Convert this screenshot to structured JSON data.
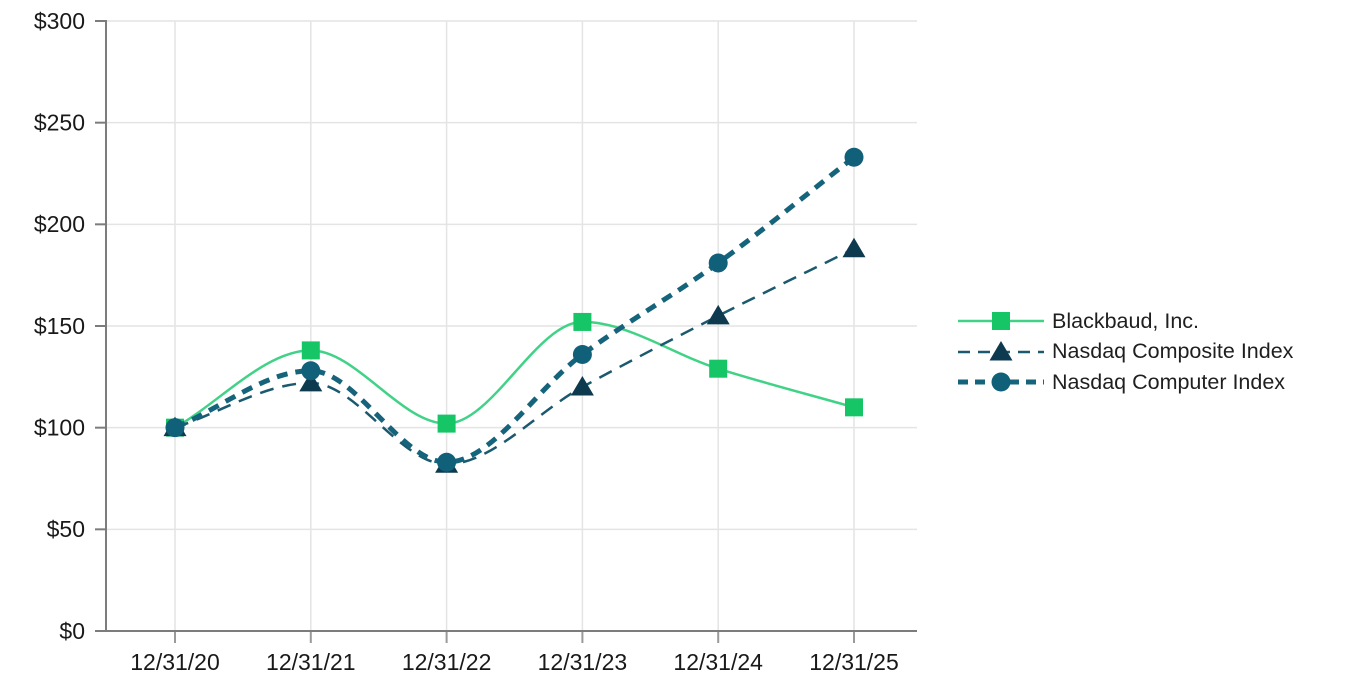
{
  "chart_data": {
    "type": "line",
    "title": "",
    "xlabel": "",
    "ylabel": "",
    "categories": [
      "12/31/20",
      "12/31/21",
      "12/31/22",
      "12/31/23",
      "12/31/24",
      "12/31/25"
    ],
    "series": [
      {
        "id": "blackbaud",
        "name": "Blackbaud, Inc.",
        "values": [
          100,
          138,
          102,
          152,
          129,
          110
        ],
        "line_color": "#41d287",
        "marker_color": "#16c566",
        "marker": "square",
        "dash": "solid",
        "line_width": 2.5
      },
      {
        "id": "nasdaq-composite",
        "name": "Nasdaq Composite Index",
        "values": [
          100,
          122,
          82,
          120,
          155,
          188
        ],
        "line_color": "#1b5a6e",
        "marker_color": "#0e3a50",
        "marker": "triangle",
        "dash": "dashed",
        "line_width": 2.5
      },
      {
        "id": "nasdaq-computer",
        "name": "Nasdaq Computer Index",
        "values": [
          100,
          128,
          83,
          136,
          181,
          233
        ],
        "line_color": "#15647c",
        "marker_color": "#11607a",
        "marker": "circle",
        "dash": "thick-dashed",
        "line_width": 5
      }
    ],
    "y_ticks": [
      {
        "label": "$0",
        "value": 0
      },
      {
        "label": "$50",
        "value": 50
      },
      {
        "label": "$100",
        "value": 100
      },
      {
        "label": "$150",
        "value": 150
      },
      {
        "label": "$200",
        "value": 200
      },
      {
        "label": "$250",
        "value": 250
      },
      {
        "label": "$300",
        "value": 300
      }
    ],
    "ylim": [
      0,
      300
    ],
    "grid": true,
    "legend_position": "right",
    "axis_color": "#7c7c7c",
    "grid_color": "#e4e4e4",
    "text_color": "#191919",
    "background_color": "#ffffff"
  }
}
